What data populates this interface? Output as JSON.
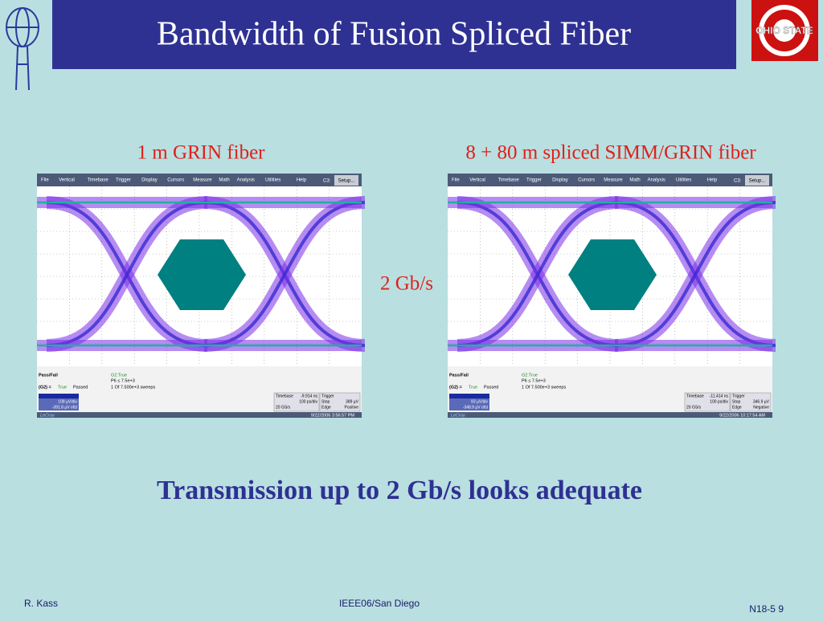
{
  "header": {
    "title": "Bandwidth of Fusion Spliced Fiber",
    "logo_text": "OHIO STATE"
  },
  "panels": [
    {
      "caption": "1 m GRIN fiber",
      "scope": {
        "menu": [
          "File",
          "Vertical",
          "Timebase",
          "Trigger",
          "Display",
          "Cursors",
          "Measure",
          "Math",
          "Analysis",
          "Utilities",
          "Help"
        ],
        "channel": "C3:",
        "setup": "Setup...",
        "status": [
          "Pass/Fail",
          "G2:True",
          "P6 ≤ 7.5e+3",
          "(G2) =",
          "True",
          "Passed",
          "1  Of  7.500e+3  sweeps"
        ],
        "vertical": [
          "108 µV/div",
          "-391.8 µV ofst"
        ],
        "timebase": [
          "Timebase",
          "-9.914 ns",
          "100 ps/div",
          "20 GS/s"
        ],
        "trigger": [
          "Trigger",
          "389 µV",
          "Stop",
          "Edge",
          "Positive"
        ],
        "brand": "LeCroy",
        "timestamp": "9/22/2006 3:56:57 PM"
      }
    },
    {
      "caption": "8 + 80 m spliced SIMM/GRIN fiber",
      "scope": {
        "menu": [
          "File",
          "Vertical",
          "Timebase",
          "Trigger",
          "Display",
          "Cursors",
          "Measure",
          "Math",
          "Analysis",
          "Utilities",
          "Help"
        ],
        "channel": "C3:",
        "setup": "Setup...",
        "status": [
          "Pass/Fail",
          "G2:True",
          "P6 ≤ 7.5e+3",
          "(G2) =",
          "True",
          "Passed",
          "1  Of  7.500e+3  sweeps"
        ],
        "vertical": [
          "93 µV/div",
          "-348.9 µV ofst"
        ],
        "timebase": [
          "Timebase",
          "-11.414 ns",
          "100 ps/div",
          "20 GS/s"
        ],
        "trigger": [
          "Trigger",
          "346.9 µV",
          "Stop",
          "Edge",
          "Negative"
        ],
        "brand": "LeCroy",
        "timestamp": "9/22/2006 10:17:54 AM"
      }
    }
  ],
  "rate_label": "2 Gb/s",
  "conclusion": "Transmission up to 2 Gb/s looks adequate",
  "footer": {
    "author": "R. Kass",
    "venue": "IEEE06/San Diego",
    "slide": "N18-5 9"
  }
}
